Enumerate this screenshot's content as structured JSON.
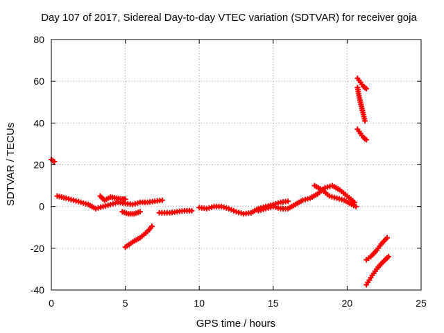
{
  "chart_data": {
    "type": "scatter",
    "title": "Day 107 of 2017, Sidereal Day-to-day VTEC variation (SDTVAR) for receiver goja",
    "xlabel": "GPS time / hours",
    "ylabel": "SDTVAR / TECUs",
    "xlim": [
      0,
      25
    ],
    "ylim": [
      -40,
      80
    ],
    "xticks": [
      0,
      5,
      10,
      15,
      20,
      25
    ],
    "xtick_labels": [
      "0",
      "5",
      "10",
      "15",
      "20",
      "25"
    ],
    "yticks": [
      -40,
      -20,
      0,
      20,
      40,
      60,
      80
    ],
    "ytick_labels": [
      "-40",
      "-20",
      "0",
      "20",
      "40",
      "60",
      "80"
    ],
    "grid": true,
    "marker": "plus",
    "color": "#ff0000",
    "series": [
      {
        "name": "arc-1",
        "x": [
          0.0,
          0.2
        ],
        "y": [
          22.5,
          21.5
        ]
      },
      {
        "name": "arc-2",
        "x": [
          0.4,
          1.0,
          1.5,
          2.0,
          2.5,
          3.0,
          3.5,
          4.0,
          4.5,
          5.0,
          5.5,
          6.0,
          6.5,
          7.0,
          7.5
        ],
        "y": [
          5,
          4,
          3,
          2,
          1,
          -1,
          0,
          1,
          2,
          1.5,
          1,
          2,
          2,
          2.5,
          3
        ]
      },
      {
        "name": "arc-3",
        "x": [
          3.3,
          3.6,
          4.0,
          4.4,
          4.8,
          5.0
        ],
        "y": [
          5,
          3,
          4.5,
          4,
          3.5,
          3.5
        ]
      },
      {
        "name": "arc-4",
        "x": [
          4.8,
          5.2,
          5.6,
          6.0
        ],
        "y": [
          -2.5,
          -3.5,
          -3.5,
          -2.5
        ]
      },
      {
        "name": "arc-5",
        "x": [
          5.0,
          5.5,
          6.0,
          6.5,
          6.8
        ],
        "y": [
          -19.5,
          -17,
          -15,
          -12,
          -9.5
        ]
      },
      {
        "name": "arc-6",
        "x": [
          7.3,
          8.0,
          8.5,
          9.0,
          9.5
        ],
        "y": [
          -3,
          -3,
          -2.5,
          -2,
          -2
        ]
      },
      {
        "name": "arc-7",
        "x": [
          10.0,
          10.5,
          11.0,
          11.5,
          12.0,
          12.5,
          13.0,
          13.5,
          14.0,
          14.5,
          15.0,
          15.5,
          16.0
        ],
        "y": [
          -0.5,
          -1,
          0,
          0,
          -1,
          -2.5,
          -3.5,
          -3,
          -1,
          0,
          1,
          2,
          2.5
        ]
      },
      {
        "name": "arc-8",
        "x": [
          14.0,
          14.5,
          15.0,
          15.5,
          16.0,
          16.5,
          17.0,
          17.5,
          18.0,
          18.5,
          19.0,
          19.5,
          20.0,
          20.5
        ],
        "y": [
          -2,
          -1,
          0,
          -1,
          -1,
          1,
          3,
          4,
          6,
          9,
          10,
          8,
          5,
          2
        ]
      },
      {
        "name": "arc-9",
        "x": [
          17.8,
          18.3,
          18.8,
          19.3,
          19.8,
          20.3,
          20.6
        ],
        "y": [
          10,
          8,
          5,
          4,
          3,
          1,
          0
        ]
      },
      {
        "name": "arc-10",
        "x": [
          20.7,
          20.9,
          21.1,
          21.3
        ],
        "y": [
          61.5,
          59.5,
          57.5,
          56.5
        ]
      },
      {
        "name": "arc-11",
        "x": [
          20.7,
          20.8,
          20.9,
          21.0,
          21.1,
          21.2
        ],
        "y": [
          57,
          53,
          50,
          47,
          44,
          41
        ]
      },
      {
        "name": "arc-12",
        "x": [
          20.7,
          20.9,
          21.1,
          21.3
        ],
        "y": [
          37,
          35,
          33,
          32
        ]
      },
      {
        "name": "arc-13",
        "x": [
          21.3,
          21.6,
          22.0,
          22.3,
          22.7
        ],
        "y": [
          -25.5,
          -24,
          -21,
          -18,
          -15
        ]
      },
      {
        "name": "arc-14",
        "x": [
          21.3,
          21.7,
          22.1,
          22.5,
          22.8
        ],
        "y": [
          -37.5,
          -33,
          -29,
          -26,
          -24
        ]
      }
    ]
  }
}
